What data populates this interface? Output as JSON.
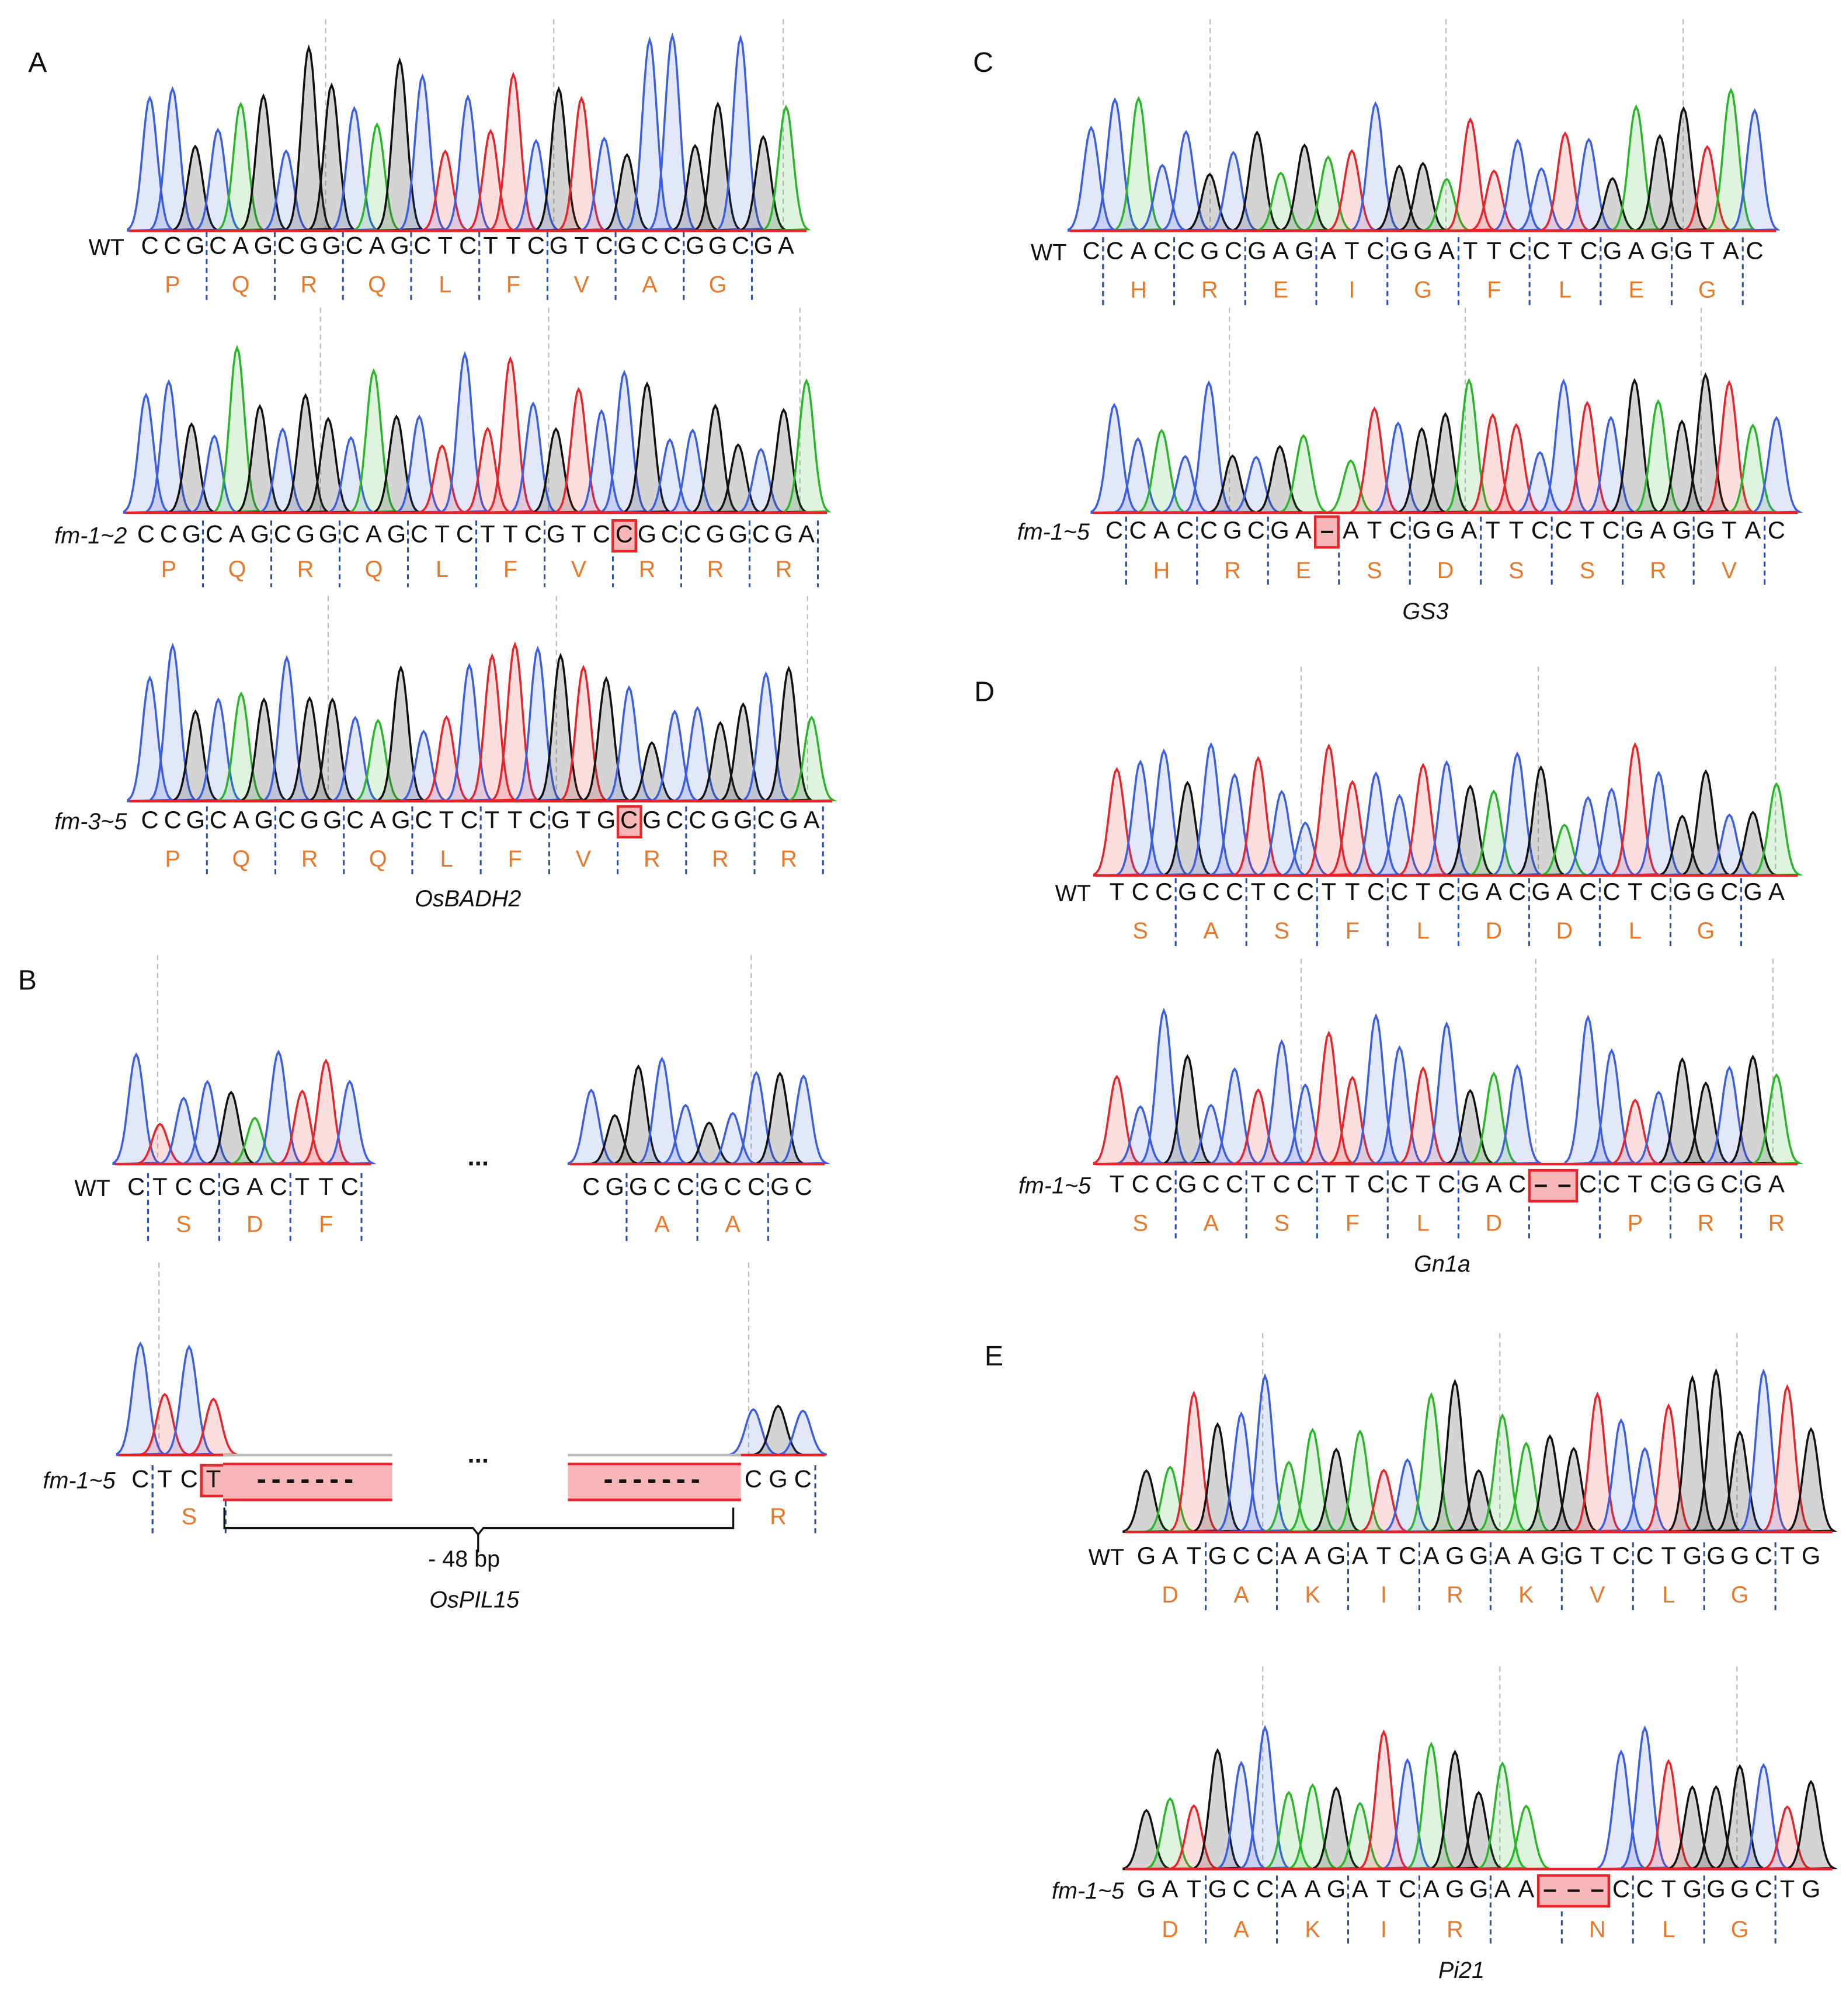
{
  "colors": {
    "A": "#2bb52b",
    "C": "#3b5fe0",
    "G": "#111111",
    "T": "#e8242b",
    "aa": "#e8782a",
    "highlight_fill": "#f7b6b8",
    "highlight_border": "#e8242b",
    "codon_divider": "#2a4fa8"
  },
  "panels": [
    {
      "letter": "A",
      "gene": "OsBADH2",
      "tracks": [
        {
          "id": "A_wt",
          "label": "WT",
          "italic": false,
          "segments": [
            {
              "seq": "CCGCAGCGGCAGCTCTTCGTCGCCGGCGA",
              "frame": 0,
              "aa": [
                "P",
                "Q",
                "R",
                "Q",
                "L",
                "F",
                "V",
                "A",
                "G"
              ]
            }
          ]
        },
        {
          "id": "A_fm12",
          "label": "fm-1~2",
          "italic": true,
          "segments": [
            {
              "seq": "CCGCAGCGGCAGCTCTTCGTCCGCCGGCGA",
              "frame": 0,
              "aa": [
                "P",
                "Q",
                "R",
                "Q",
                "L",
                "F",
                "V",
                "R",
                "R",
                "R"
              ],
              "highlight": [
                21,
                21
              ]
            }
          ]
        },
        {
          "id": "A_fm35",
          "label": "fm-3~5",
          "italic": true,
          "segments": [
            {
              "seq": "CCGCAGCGGCAGCTCTTCGTGCGCCGGCGA",
              "frame": 0,
              "aa": [
                "P",
                "Q",
                "R",
                "Q",
                "L",
                "F",
                "V",
                "R",
                "R",
                "R"
              ],
              "highlight": [
                21,
                21
              ]
            }
          ]
        }
      ]
    },
    {
      "letter": "B",
      "gene": "OsPIL15",
      "deletion_note": "- 48 bp",
      "ellipsis": "...",
      "tracks": [
        {
          "id": "B_wt",
          "label": "WT",
          "italic": false,
          "segments": [
            {
              "seq": "CTCCGACTTC",
              "frame": 1,
              "aa": [
                "S",
                "D",
                "F"
              ]
            },
            {
              "seq": "CGGCCGCCGC",
              "frame": 2,
              "aa": [
                "A",
                "A"
              ]
            }
          ]
        },
        {
          "id": "B_fm",
          "label": "fm-1~5",
          "italic": true,
          "deletion_marks": [
            "-------",
            "-------"
          ],
          "segments": [
            {
              "seq": "CTCT",
              "frame": 1,
              "aa": [
                "S"
              ],
              "highlight": [
                3,
                3
              ]
            },
            {
              "seq": "CGC",
              "frame": 0,
              "aa": [
                "R"
              ]
            }
          ]
        }
      ]
    },
    {
      "letter": "C",
      "gene": "GS3",
      "tracks": [
        {
          "id": "C_wt",
          "label": "WT",
          "italic": false,
          "segments": [
            {
              "seq": "CCACCGCGAGATCGGATTCCTCGAGGTAC",
              "frame": 1,
              "aa": [
                "H",
                "R",
                "E",
                "I",
                "G",
                "F",
                "L",
                "E",
                "G"
              ]
            }
          ]
        },
        {
          "id": "C_fm",
          "label": "fm-1~5",
          "italic": true,
          "segments": [
            {
              "seq": "CCACCGCGA-ATCGGATTCCTCGAGGTAC",
              "frame": 1,
              "aa": [
                "H",
                "R",
                "E",
                "S",
                "D",
                "S",
                "S",
                "R",
                "V"
              ],
              "highlight": [
                9,
                9
              ]
            }
          ]
        }
      ]
    },
    {
      "letter": "D",
      "gene": "Gn1a",
      "tracks": [
        {
          "id": "D_wt",
          "label": "WT",
          "italic": false,
          "segments": [
            {
              "seq": "TCCGCCTCCTTCCTCGACGACCTCGGCGA",
              "frame": 0,
              "aa": [
                "S",
                "A",
                "S",
                "F",
                "L",
                "D",
                "D",
                "L",
                "G"
              ]
            }
          ]
        },
        {
          "id": "D_fm",
          "label": "fm-1~5",
          "italic": true,
          "segments": [
            {
              "seq": "TCCGCCTCCTTCCTCGAC--CCTCGGCGA",
              "frame": 0,
              "aa": [
                "S",
                "A",
                "S",
                "F",
                "L",
                "D",
                "",
                "P",
                "R",
                "R"
              ],
              "highlight": [
                18,
                19
              ]
            }
          ]
        }
      ]
    },
    {
      "letter": "E",
      "gene": "Pi21",
      "tracks": [
        {
          "id": "E_wt",
          "label": "WT",
          "italic": false,
          "segments": [
            {
              "seq": "GATGCCAAGATCAGGAAGGTCCTGGGCTG",
              "frame": 0,
              "aa": [
                "D",
                "A",
                "K",
                "I",
                "R",
                "K",
                "V",
                "L",
                "G"
              ]
            }
          ]
        },
        {
          "id": "E_fm",
          "label": "fm-1~5",
          "italic": true,
          "segments": [
            {
              "seq": "GATGCCAAGATCAGGAA---CCTGGGCTG",
              "frame": 0,
              "aa": [
                "D",
                "A",
                "K",
                "I",
                "R",
                "",
                "N",
                "L",
                "G"
              ],
              "highlight": [
                17,
                19
              ]
            }
          ]
        }
      ]
    }
  ]
}
